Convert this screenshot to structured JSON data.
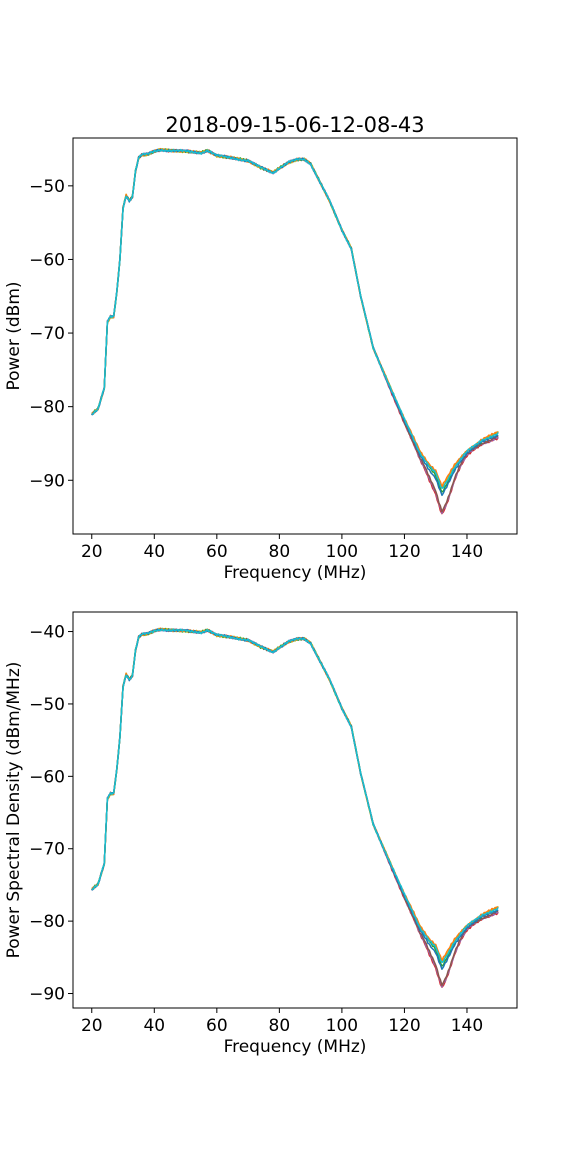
{
  "chart_data": [
    {
      "type": "line",
      "title": "2018-09-15-06-12-08-43",
      "xlabel": "Frequency (MHz)",
      "ylabel": "Power (dBm)",
      "xlim": [
        14,
        156
      ],
      "ylim": [
        -97.3,
        -43.5
      ],
      "xticks": [
        20,
        40,
        60,
        80,
        100,
        120,
        140
      ],
      "yticks": [
        -90,
        -80,
        -70,
        -60,
        -50
      ],
      "grid": false,
      "legend": "none",
      "base_curve": {
        "x": [
          20,
          22,
          24,
          25,
          26,
          27,
          28,
          29,
          30,
          31,
          32,
          33,
          34,
          35,
          36,
          38,
          40,
          42,
          45,
          50,
          55,
          57,
          60,
          65,
          70,
          74,
          78,
          80,
          83,
          86,
          88,
          90,
          93,
          96,
          100,
          103,
          106,
          110,
          115,
          120,
          125,
          128,
          130,
          132,
          134,
          136,
          138,
          140,
          145,
          150
        ],
        "y": [
          -81.0,
          -80.3,
          -77.5,
          -68.5,
          -67.8,
          -67.8,
          -64.5,
          -60.0,
          -53.0,
          -51.3,
          -52.0,
          -51.5,
          -48.0,
          -46.2,
          -45.8,
          -45.7,
          -45.3,
          -45.1,
          -45.2,
          -45.3,
          -45.5,
          -45.2,
          -45.9,
          -46.2,
          -46.6,
          -47.5,
          -48.2,
          -47.6,
          -46.8,
          -46.4,
          -46.4,
          -47.0,
          -49.5,
          -52.0,
          -56.0,
          -58.5,
          -65.0,
          -72.0,
          -77.0,
          -82.0,
          -86.5,
          -88.2,
          -89.0,
          -91.2,
          -89.8,
          -88.3,
          -87.2,
          -86.2,
          -84.8,
          -83.8
        ]
      },
      "series": [
        {
          "color": "#d62728",
          "dip_depth": 3.3,
          "tail_offset": -0.4
        },
        {
          "color": "#9467bd",
          "dip_depth": 3.1,
          "tail_offset": -0.3
        },
        {
          "color": "#8c564b",
          "dip_depth": 2.9,
          "tail_offset": -0.2
        },
        {
          "color": "#2ca02c",
          "dip_depth": 0.5,
          "tail_offset": 0.2
        },
        {
          "color": "#bcbd22",
          "dip_depth": 0.0,
          "tail_offset": 0.3
        },
        {
          "color": "#ff7f0e",
          "dip_depth": -0.2,
          "tail_offset": 0.4
        },
        {
          "color": "#1f77b4",
          "dip_depth": 0.9,
          "tail_offset": 0.0
        },
        {
          "color": "#17becf",
          "dip_depth": 0.2,
          "tail_offset": 0.25
        }
      ]
    },
    {
      "type": "line",
      "title": "",
      "xlabel": "Frequency (MHz)",
      "ylabel": "Power Spectral Density (dBm/MHz)",
      "xlim": [
        14,
        156
      ],
      "ylim": [
        -92.0,
        -37.3
      ],
      "xticks": [
        20,
        40,
        60,
        80,
        100,
        120,
        140
      ],
      "yticks": [
        -90,
        -80,
        -70,
        -60,
        -50,
        -40
      ],
      "grid": false,
      "legend": "none",
      "base_curve": {
        "x": [
          20,
          22,
          24,
          25,
          26,
          27,
          28,
          29,
          30,
          31,
          32,
          33,
          34,
          35,
          36,
          38,
          40,
          42,
          45,
          50,
          55,
          57,
          60,
          65,
          70,
          74,
          78,
          80,
          83,
          86,
          88,
          90,
          93,
          96,
          100,
          103,
          106,
          110,
          115,
          120,
          125,
          128,
          130,
          132,
          134,
          136,
          138,
          140,
          145,
          150
        ],
        "y": [
          -75.6,
          -74.9,
          -72.1,
          -63.1,
          -62.4,
          -62.4,
          -59.1,
          -54.6,
          -47.6,
          -45.9,
          -46.6,
          -46.1,
          -42.6,
          -40.8,
          -40.4,
          -40.3,
          -39.9,
          -39.7,
          -39.8,
          -39.9,
          -40.1,
          -39.8,
          -40.5,
          -40.8,
          -41.2,
          -42.1,
          -42.8,
          -42.2,
          -41.4,
          -41.0,
          -41.0,
          -41.6,
          -44.1,
          -46.6,
          -50.6,
          -53.1,
          -59.6,
          -66.6,
          -71.6,
          -76.6,
          -81.1,
          -82.8,
          -83.6,
          -85.8,
          -84.4,
          -82.9,
          -81.8,
          -80.8,
          -79.4,
          -78.4
        ]
      },
      "series": [
        {
          "color": "#d62728",
          "dip_depth": 3.3,
          "tail_offset": -0.4
        },
        {
          "color": "#9467bd",
          "dip_depth": 3.1,
          "tail_offset": -0.3
        },
        {
          "color": "#8c564b",
          "dip_depth": 2.9,
          "tail_offset": -0.2
        },
        {
          "color": "#2ca02c",
          "dip_depth": 0.5,
          "tail_offset": 0.2
        },
        {
          "color": "#bcbd22",
          "dip_depth": 0.0,
          "tail_offset": 0.3
        },
        {
          "color": "#ff7f0e",
          "dip_depth": -0.2,
          "tail_offset": 0.4
        },
        {
          "color": "#1f77b4",
          "dip_depth": 0.9,
          "tail_offset": 0.0
        },
        {
          "color": "#17becf",
          "dip_depth": 0.2,
          "tail_offset": 0.25
        }
      ]
    }
  ]
}
